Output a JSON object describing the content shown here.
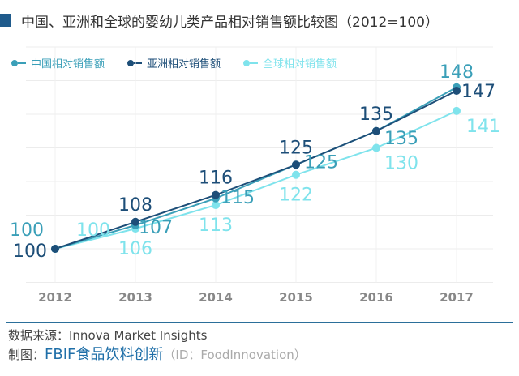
{
  "title": "中国、亚洲和全球的婴幼儿类产品相对销售额比较图（2012=100）",
  "chart_data": {
    "type": "line",
    "title": "中国、亚洲和全球的婴幼儿类产品相对销售额比较图（2012=100）",
    "categories": [
      "2012",
      "2013",
      "2014",
      "2015",
      "2016",
      "2017"
    ],
    "ylim": [
      90,
      160
    ],
    "grid": true,
    "legend": "top-left",
    "series": [
      {
        "name": "中国相对销售额",
        "color": "#3a9fb8",
        "values": [
          100,
          107,
          115,
          125,
          135,
          148
        ]
      },
      {
        "name": "亚洲相对销售额",
        "color": "#1d4e78",
        "values": [
          100,
          108,
          116,
          125,
          135,
          147
        ]
      },
      {
        "name": "全球相对销售额",
        "color": "#7fe3ec",
        "values": [
          100,
          106,
          113,
          122,
          130,
          141
        ]
      }
    ]
  },
  "footer": {
    "source": "数据来源：Innova Market Insights",
    "made_by": "制图：",
    "brand": "FBIF食品饮料创新",
    "id": "（ID：FoodInnovation）"
  }
}
